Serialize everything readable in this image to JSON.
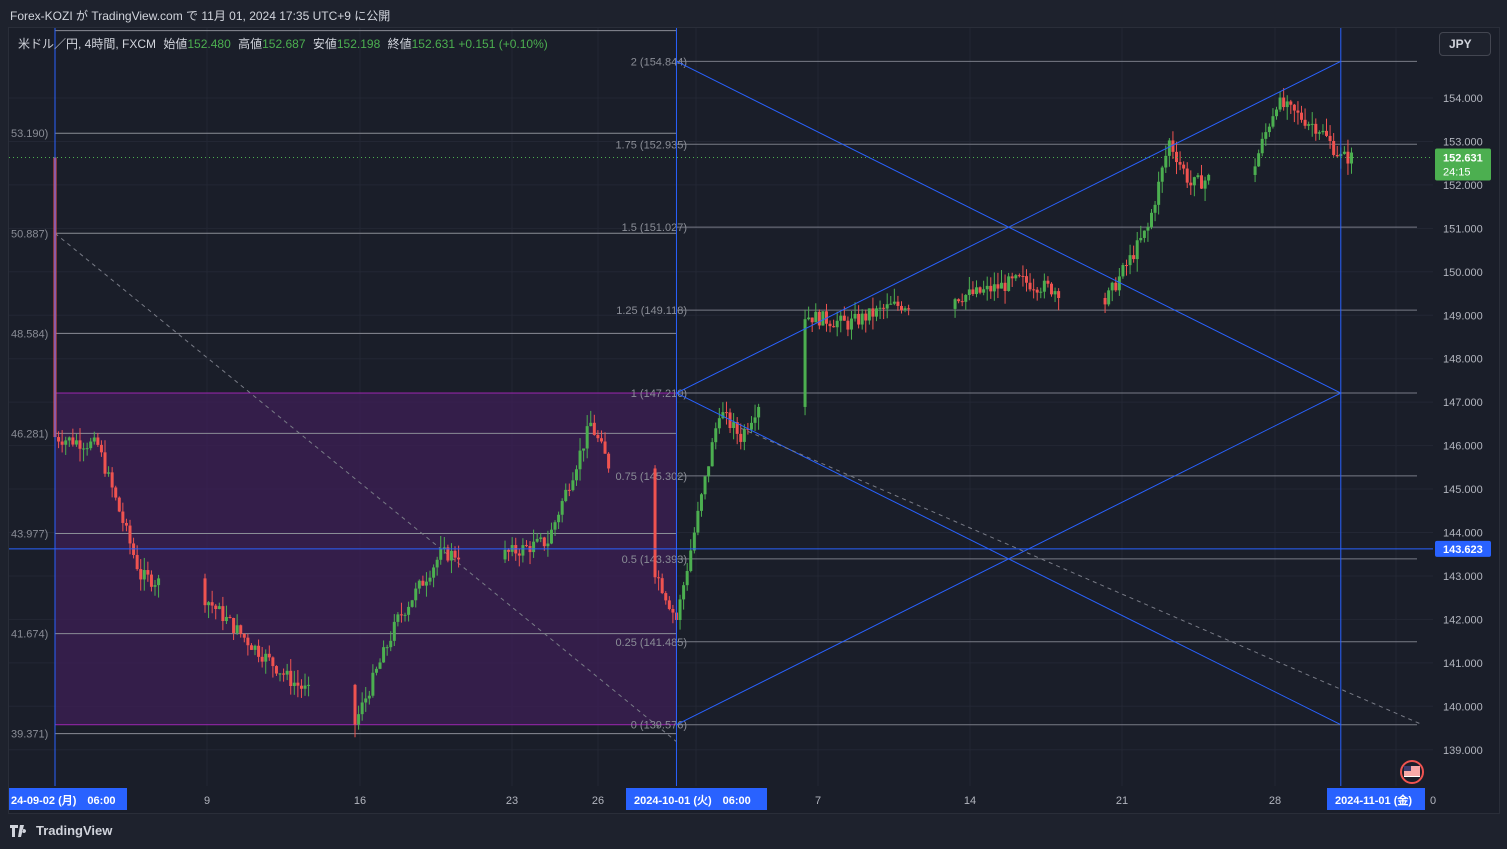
{
  "header": {
    "publisher_line": "Forex-KOZI が TradingView.com で 11月 01, 2024 17:35 UTC+9 に公開"
  },
  "legend": {
    "symbol": "米ドル／円, 4時間, FXCM",
    "open_label": "始値",
    "open": "152.480",
    "high_label": "高値",
    "high": "152.687",
    "low_label": "安値",
    "low": "152.198",
    "close_label": "終値",
    "close": "152.631",
    "change": "+0.151 (+0.10%)"
  },
  "toolbar": {
    "currency": "JPY"
  },
  "price_scale": {
    "ticks": [
      "154.000",
      "153.000",
      "152.000",
      "151.000",
      "150.000",
      "149.000",
      "148.000",
      "147.000",
      "146.000",
      "145.000",
      "144.000",
      "143.000",
      "142.000",
      "141.000",
      "140.000",
      "139.000"
    ],
    "last_price": "152.631",
    "countdown": "24:15",
    "line_price": "143.623"
  },
  "time_scale": {
    "ticks": [
      "9",
      "16",
      "23",
      "26",
      "7",
      "14",
      "21",
      "28"
    ],
    "highlight_1": "24-09-02 (月)　06:00",
    "highlight_2": "2024-10-01 (火)　06:00",
    "highlight_3": "2024-11-01 (金)",
    "edge_label": "0"
  },
  "left_box_labels": [
    "53.190)",
    "50.887)",
    "48.584)",
    "46.281)",
    "43.977)",
    "41.674)",
    "39.371)"
  ],
  "fib_labels": [
    "2 (154.844)",
    "1.75 (152.935)",
    "1.5 (151.027)",
    "1.25 (149.118)",
    "1 (147.210)",
    "0.75 (145.302)",
    "0.5 (143.393)",
    "0.25 (141.485)",
    "0 (139.576)"
  ],
  "colors": {
    "background": "#1a1e29",
    "up": "#26a69a",
    "up_candle": "#4caf50",
    "down": "#ef5350",
    "blue_line": "#2962ff",
    "fib_line": "#787b86",
    "box_fill": "#3d1f55",
    "last_price_bg": "#4caf50"
  },
  "chart_data": {
    "type": "candlestick",
    "title": "米ドル／円, 4時間, FXCM",
    "xlabel": "",
    "ylabel": "",
    "ylim": [
      138.4,
      155.3
    ],
    "x_range": [
      "2024-09-02",
      "2024-11-01"
    ],
    "notable_points": [
      {
        "x": "2024-09-02",
        "y": 146.2
      },
      {
        "x": "2024-09-16",
        "y": 139.6
      },
      {
        "x": "2024-09-27",
        "y": 146.5
      },
      {
        "x": "2024-10-01",
        "y": 142.0
      },
      {
        "x": "2024-10-07",
        "y": 149.0
      },
      {
        "x": "2024-10-24",
        "y": 153.0
      },
      {
        "x": "2024-10-29",
        "y": 153.9
      },
      {
        "x": "2024-11-01",
        "y": 152.631
      }
    ],
    "horizontal_line": 143.623,
    "fibonacci_extension": {
      "levels": [
        {
          "level": 0,
          "price": 139.576
        },
        {
          "level": 0.25,
          "price": 141.485
        },
        {
          "level": 0.5,
          "price": 143.393
        },
        {
          "level": 0.75,
          "price": 145.302
        },
        {
          "level": 1,
          "price": 147.21
        },
        {
          "level": 1.25,
          "price": 149.118
        },
        {
          "level": 1.5,
          "price": 151.027
        },
        {
          "level": 1.75,
          "price": 152.935
        },
        {
          "level": 2,
          "price": 154.844
        }
      ]
    }
  }
}
